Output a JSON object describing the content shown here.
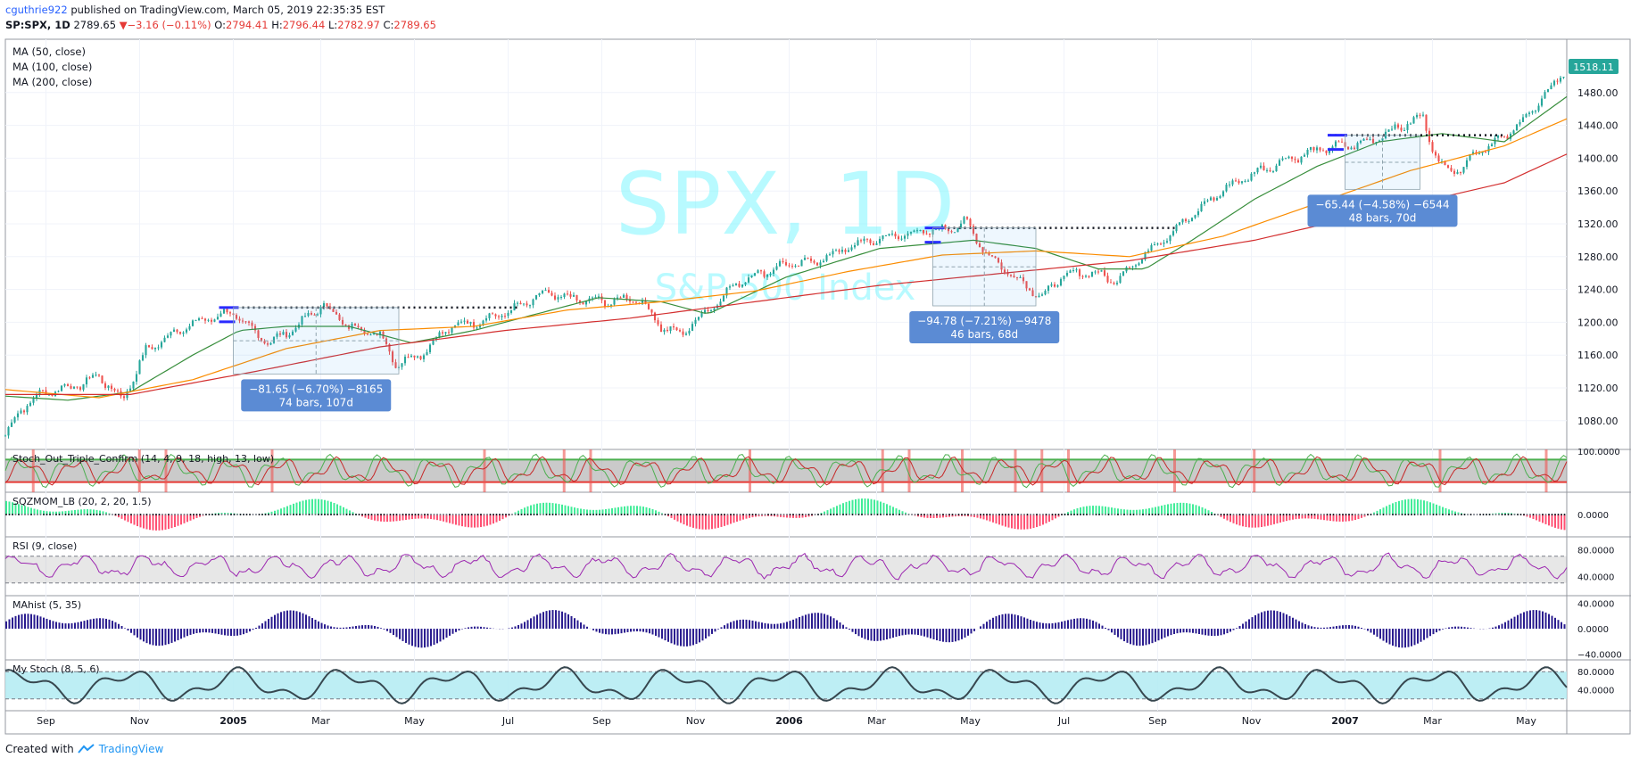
{
  "header": {
    "author": "cguthrie922",
    "published_text": "published on TradingView.com, March 05, 2019 22:35:35 EST",
    "symbol": "SP:SPX, 1D",
    "last": "2789.65",
    "change": "−3.16 (−0.11%)",
    "o_label": "O:",
    "o": "2794.41",
    "h_label": "H:",
    "h": "2796.44",
    "l_label": "L:",
    "l": "2782.97",
    "c_label": "C:",
    "c": "2789.65"
  },
  "footer": {
    "created_with": "Created with",
    "brand": "TradingView"
  },
  "watermark": {
    "title": "SPX, 1D",
    "subtitle": "S&P 500 Index"
  },
  "colors": {
    "up": "#26a69a",
    "down": "#ef5350",
    "ma50": "#388e3c",
    "ma100": "#fb8c00",
    "ma200": "#d32f2f",
    "purple": "#2a1c8f",
    "rsi": "#9c27b0",
    "stoch_fill": "#b2ebf2",
    "watermark": "#7ff6ff"
  },
  "chart_data": [
    {
      "type": "line",
      "name": "price",
      "legend": [
        "MA (50, close)",
        "MA (100, close)",
        "MA (200, close)"
      ],
      "last_price_label": "1518.11",
      "yticks": [
        1080,
        1120,
        1160,
        1200,
        1240,
        1280,
        1320,
        1360,
        1400,
        1440,
        1480
      ],
      "ylim": [
        1045,
        1545
      ],
      "ytick_labels": [
        "1080.00",
        "1120.00",
        "1160.00",
        "1200.00",
        "1240.00",
        "1280.00",
        "1320.00",
        "1360.00",
        "1400.00",
        "1440.00",
        "1480.00"
      ],
      "xlim": [
        0,
        1000
      ],
      "xticks": [
        {
          "t": 26,
          "label": "Sep",
          "bold": false
        },
        {
          "t": 86,
          "label": "Nov",
          "bold": false
        },
        {
          "t": 146,
          "label": "2005",
          "bold": true
        },
        {
          "t": 202,
          "label": "Mar",
          "bold": false
        },
        {
          "t": 262,
          "label": "May",
          "bold": false
        },
        {
          "t": 322,
          "label": "Jul",
          "bold": false
        },
        {
          "t": 382,
          "label": "Sep",
          "bold": false
        },
        {
          "t": 442,
          "label": "Nov",
          "bold": false
        },
        {
          "t": 502,
          "label": "2006",
          "bold": true
        },
        {
          "t": 558,
          "label": "Mar",
          "bold": false
        },
        {
          "t": 618,
          "label": "May",
          "bold": false
        },
        {
          "t": 678,
          "label": "Jul",
          "bold": false
        },
        {
          "t": 738,
          "label": "Sep",
          "bold": false
        },
        {
          "t": 798,
          "label": "Nov",
          "bold": false
        },
        {
          "t": 858,
          "label": "2007",
          "bold": true
        },
        {
          "t": 914,
          "label": "Mar",
          "bold": false
        },
        {
          "t": 974,
          "label": "May",
          "bold": false
        }
      ],
      "close_anchors": [
        [
          0,
          1062
        ],
        [
          10,
          1095
        ],
        [
          25,
          1115
        ],
        [
          45,
          1122
        ],
        [
          60,
          1135
        ],
        [
          75,
          1105
        ],
        [
          90,
          1165
        ],
        [
          110,
          1190
        ],
        [
          130,
          1205
        ],
        [
          145,
          1212
        ],
        [
          158,
          1190
        ],
        [
          170,
          1175
        ],
        [
          190,
          1200
        ],
        [
          203,
          1222
        ],
        [
          220,
          1195
        ],
        [
          240,
          1185
        ],
        [
          250,
          1150
        ],
        [
          265,
          1160
        ],
        [
          285,
          1195
        ],
        [
          305,
          1202
        ],
        [
          325,
          1215
        ],
        [
          345,
          1235
        ],
        [
          365,
          1228
        ],
        [
          385,
          1225
        ],
        [
          405,
          1230
        ],
        [
          420,
          1195
        ],
        [
          432,
          1185
        ],
        [
          450,
          1215
        ],
        [
          470,
          1250
        ],
        [
          495,
          1268
        ],
        [
          520,
          1275
        ],
        [
          545,
          1295
        ],
        [
          560,
          1302
        ],
        [
          585,
          1310
        ],
        [
          600,
          1312
        ],
        [
          615,
          1322
        ],
        [
          630,
          1280
        ],
        [
          650,
          1250
        ],
        [
          665,
          1230
        ],
        [
          675,
          1255
        ],
        [
          695,
          1262
        ],
        [
          710,
          1250
        ],
        [
          725,
          1275
        ],
        [
          740,
          1300
        ],
        [
          760,
          1330
        ],
        [
          780,
          1362
        ],
        [
          800,
          1382
        ],
        [
          820,
          1398
        ],
        [
          845,
          1412
        ],
        [
          870,
          1418
        ],
        [
          895,
          1440
        ],
        [
          908,
          1450
        ],
        [
          918,
          1392
        ],
        [
          930,
          1385
        ],
        [
          945,
          1412
        ],
        [
          960,
          1425
        ],
        [
          980,
          1462
        ],
        [
          1000,
          1510
        ]
      ],
      "ma50_anchors": [
        [
          0,
          1110
        ],
        [
          40,
          1105
        ],
        [
          80,
          1115
        ],
        [
          120,
          1160
        ],
        [
          150,
          1190
        ],
        [
          180,
          1195
        ],
        [
          220,
          1195
        ],
        [
          260,
          1175
        ],
        [
          300,
          1190
        ],
        [
          340,
          1210
        ],
        [
          380,
          1230
        ],
        [
          420,
          1225
        ],
        [
          450,
          1210
        ],
        [
          500,
          1255
        ],
        [
          560,
          1290
        ],
        [
          620,
          1300
        ],
        [
          660,
          1290
        ],
        [
          700,
          1265
        ],
        [
          730,
          1265
        ],
        [
          760,
          1300
        ],
        [
          800,
          1350
        ],
        [
          840,
          1390
        ],
        [
          880,
          1420
        ],
        [
          920,
          1430
        ],
        [
          960,
          1420
        ],
        [
          1000,
          1475
        ]
      ],
      "ma100_anchors": [
        [
          0,
          1118
        ],
        [
          60,
          1108
        ],
        [
          120,
          1130
        ],
        [
          180,
          1168
        ],
        [
          240,
          1190
        ],
        [
          300,
          1195
        ],
        [
          360,
          1215
        ],
        [
          420,
          1225
        ],
        [
          480,
          1238
        ],
        [
          540,
          1262
        ],
        [
          600,
          1282
        ],
        [
          660,
          1287
        ],
        [
          720,
          1280
        ],
        [
          780,
          1305
        ],
        [
          840,
          1345
        ],
        [
          900,
          1385
        ],
        [
          960,
          1415
        ],
        [
          1000,
          1448
        ]
      ],
      "ma200_anchors": [
        [
          0,
          1112
        ],
        [
          80,
          1112
        ],
        [
          160,
          1140
        ],
        [
          240,
          1170
        ],
        [
          320,
          1190
        ],
        [
          400,
          1205
        ],
        [
          480,
          1225
        ],
        [
          560,
          1245
        ],
        [
          640,
          1260
        ],
        [
          720,
          1275
        ],
        [
          800,
          1300
        ],
        [
          880,
          1335
        ],
        [
          960,
          1370
        ],
        [
          1000,
          1405
        ]
      ],
      "annotations": [
        {
          "text": [
            "−81.65 (−6.70%) −8165",
            "74 bars, 107d"
          ],
          "t0": 146,
          "t1": 252,
          "hi": 1218,
          "lo": 1137
        },
        {
          "text": [
            "−94.78 (−7.21%) −9478",
            "46 bars, 68d"
          ],
          "t0": 594,
          "t1": 660,
          "hi": 1315,
          "lo": 1220
        },
        {
          "text": [
            "−65.44 (−4.58%) −6544",
            "48 bars, 70d"
          ],
          "t0": 858,
          "t1": 906,
          "hi": 1428,
          "lo": 1362
        }
      ],
      "resistance": [
        {
          "t0": 138,
          "t1": 330,
          "v": 1218
        },
        {
          "t0": 590,
          "t1": 750,
          "v": 1315
        },
        {
          "t0": 848,
          "t1": 960,
          "v": 1428
        }
      ]
    },
    {
      "type": "line",
      "name": "stoch_out",
      "label": "Stoch_Out_Triple_Confirm (14, 4, 9, 18, high, 13, low)",
      "ytick_labels": [
        "100.0000"
      ],
      "ylim": [
        0,
        100
      ],
      "bands": [
        20,
        80
      ]
    },
    {
      "type": "bar",
      "name": "sqzmom",
      "label": "SQZMOM_LB (20, 2, 20, 1.5)",
      "ytick_labels": [
        "0.0000"
      ]
    },
    {
      "type": "line",
      "name": "rsi",
      "label": "RSI (9, close)",
      "ytick_labels": [
        "80.0000",
        "40.0000"
      ],
      "ylim": [
        15,
        95
      ],
      "bands": [
        30,
        70
      ]
    },
    {
      "type": "bar",
      "name": "mahist",
      "label": "MAhist (5, 35)",
      "ytick_labels": [
        "40.0000",
        "0.0000",
        "−40.0000"
      ],
      "ylim": [
        -45,
        48
      ]
    },
    {
      "type": "line",
      "name": "my_stoch",
      "label": "My Stoch (8, 5, 6)",
      "ytick_labels": [
        "80.0000",
        "40.0000"
      ],
      "ylim": [
        0,
        100
      ],
      "bands": [
        20,
        80
      ]
    }
  ]
}
